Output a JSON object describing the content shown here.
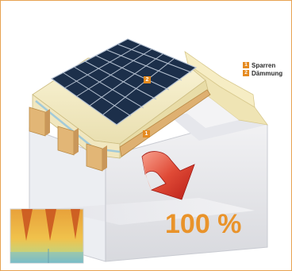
{
  "legend": {
    "items": [
      {
        "number": "1",
        "label": "Sparren"
      },
      {
        "number": "2",
        "label": "Dämmung"
      }
    ]
  },
  "callouts": {
    "insulation": "2",
    "rafter": "1"
  },
  "percent_label": "100 %",
  "colors": {
    "frame": "#e7a352",
    "accent": "#e58a1f",
    "percent_text": "#e9932a",
    "arrow": "#d9342a",
    "solar_panel": "#1c2f4a",
    "insulation": "#f4ecc6"
  }
}
